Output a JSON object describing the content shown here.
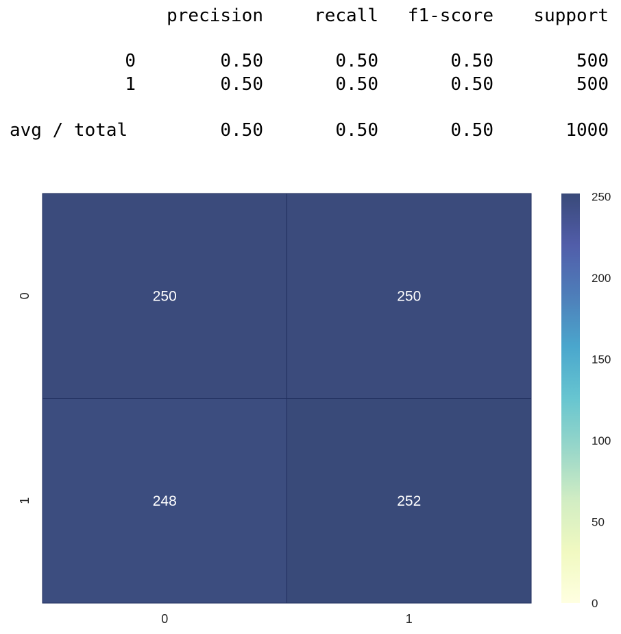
{
  "report": {
    "headers": [
      "precision",
      "recall",
      "f1-score",
      "support"
    ],
    "rows": [
      {
        "label": "0",
        "values": [
          "0.50",
          "0.50",
          "0.50",
          "500"
        ]
      },
      {
        "label": "1",
        "values": [
          "0.50",
          "0.50",
          "0.50",
          "500"
        ]
      },
      {
        "label": "avg / total",
        "values": [
          "0.50",
          "0.50",
          "0.50",
          "1000"
        ]
      }
    ]
  },
  "chart_data": {
    "type": "heatmap",
    "x_categories": [
      "0",
      "1"
    ],
    "y_categories": [
      "0",
      "1"
    ],
    "values": [
      [
        250,
        250
      ],
      [
        248,
        252
      ]
    ],
    "annotations": [
      [
        "250",
        "250"
      ],
      [
        "248",
        "252"
      ]
    ],
    "colormap": "YlGnBu",
    "colors": [
      "#ffffd9",
      "#edf8b1",
      "#c7e9b4",
      "#7fcdbb",
      "#41b6c4",
      "#1d91c0",
      "#225ea8",
      "#253494",
      "#081d58"
    ],
    "cell_alpha": 0.8,
    "colorbar": {
      "min": 0,
      "max": 252,
      "ticks": [
        "0",
        "50",
        "100",
        "150",
        "200",
        "250"
      ]
    },
    "title": "",
    "xlabel": "",
    "ylabel": ""
  }
}
